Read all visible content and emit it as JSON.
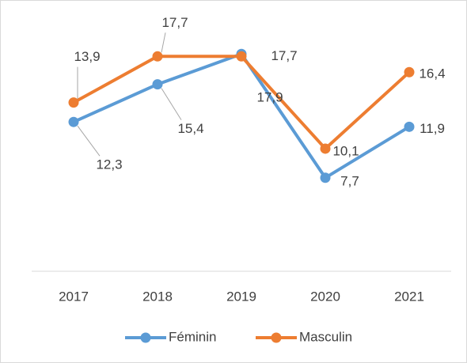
{
  "chart_data": {
    "type": "line",
    "categories": [
      "2017",
      "2018",
      "2019",
      "2020",
      "2021"
    ],
    "series": [
      {
        "name": "Féminin",
        "color": "#5b9bd5",
        "values": [
          12.3,
          15.4,
          17.9,
          7.7,
          11.9
        ],
        "value_labels": [
          "12,3",
          "15,4",
          "17,9",
          "7,7",
          "11,9"
        ]
      },
      {
        "name": "Masculin",
        "color": "#ed7d31",
        "values": [
          13.9,
          17.7,
          17.7,
          10.1,
          16.4
        ],
        "value_labels": [
          "13,9",
          "17,7",
          "17,7",
          "10,1",
          "16,4"
        ]
      }
    ],
    "ylim": [
      0,
      20
    ],
    "grid": false,
    "legend": "bottom"
  }
}
